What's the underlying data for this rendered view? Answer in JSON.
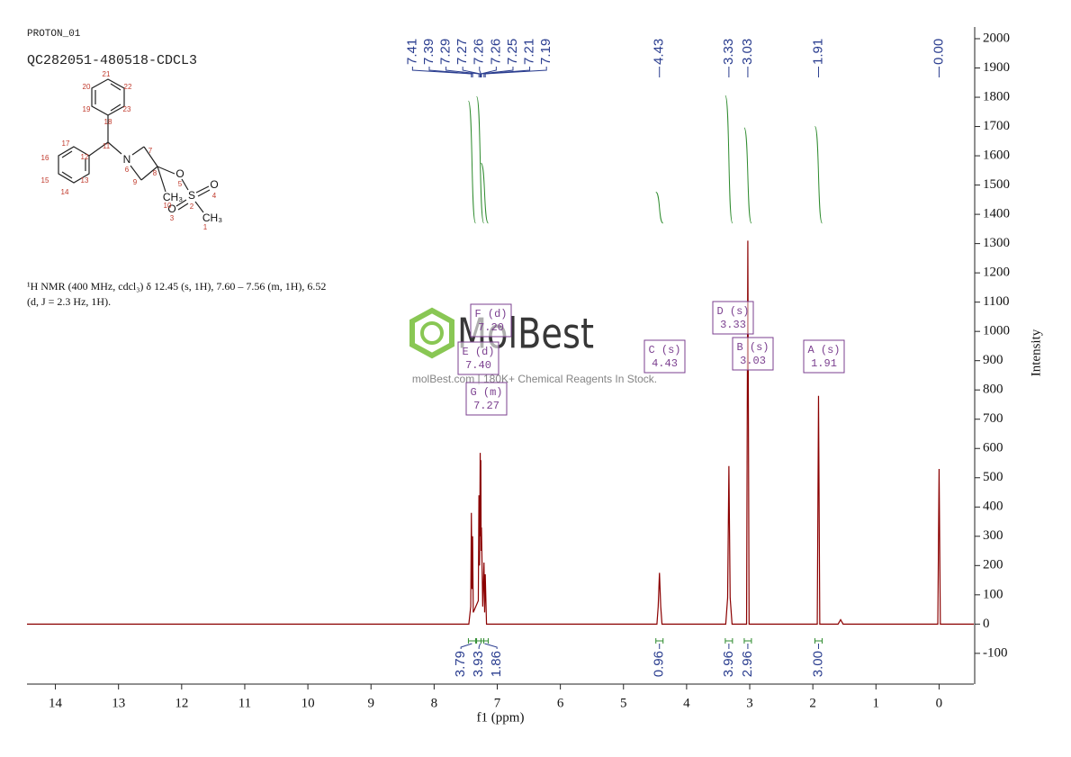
{
  "header": {
    "experiment": "PROTON_01",
    "sample": "QC282051-480518-CDCL3"
  },
  "description": [
    "¹H NMR (400 MHz, cdcl₃) δ 12.45 (s, 1H), 7.60 – 7.56 (m, 1H), 6.52",
    "(d, J = 2.3 Hz, 1H)."
  ],
  "watermark": {
    "brand": "MolBest",
    "tagline": "molBest.com | 180K+ Chemical Reagents In Stock."
  },
  "structure": {
    "atoms": [
      "N",
      "O",
      "S",
      "O",
      "O",
      "CH₃",
      "CH₃"
    ],
    "numbers": [
      "1",
      "2",
      "3",
      "4",
      "5",
      "6",
      "7",
      "8",
      "9",
      "10",
      "11",
      "12",
      "13",
      "14",
      "15",
      "16",
      "17",
      "18",
      "19",
      "20",
      "21",
      "22",
      "23"
    ]
  },
  "chart_data": {
    "type": "line",
    "x_label": "f1 (ppm)",
    "y_label": "Intensity",
    "color": "#8b0000",
    "xlim": [
      14.45,
      -0.55
    ],
    "ylim": [
      -205,
      2040
    ],
    "xticks": [
      14,
      13,
      12,
      11,
      10,
      9,
      8,
      7,
      6,
      5,
      4,
      3,
      2,
      1,
      0
    ],
    "yticks": [
      2000,
      1900,
      1800,
      1700,
      1600,
      1500,
      1400,
      1300,
      1200,
      1100,
      1000,
      900,
      800,
      700,
      600,
      500,
      400,
      300,
      200,
      100,
      0,
      -100
    ],
    "x": [
      14.45,
      7.45,
      7.42,
      7.41,
      7.4,
      7.39,
      7.38,
      7.3,
      7.29,
      7.28,
      7.27,
      7.265,
      7.26,
      7.255,
      7.25,
      7.23,
      7.21,
      7.2,
      7.19,
      7.17,
      4.47,
      4.45,
      4.43,
      4.41,
      4.39,
      3.38,
      3.35,
      3.33,
      3.31,
      3.28,
      3.05,
      3.03,
      3.01,
      1.93,
      1.91,
      1.89,
      1.6,
      1.56,
      1.52,
      0.02,
      0.0,
      -0.02,
      -0.55
    ],
    "values": [
      0,
      0,
      60,
      380,
      120,
      300,
      40,
      80,
      440,
      200,
      585,
      300,
      560,
      250,
      330,
      60,
      210,
      40,
      170,
      0,
      0,
      60,
      175,
      60,
      0,
      0,
      90,
      540,
      90,
      0,
      0,
      1310,
      0,
      0,
      780,
      0,
      0,
      15,
      0,
      0,
      530,
      0,
      0
    ],
    "peak_labels": [
      7.41,
      7.39,
      7.29,
      7.27,
      7.26,
      7.26,
      7.25,
      7.21,
      7.19,
      4.43,
      3.33,
      3.03,
      1.91,
      {
        "value": 0,
        "label": "0.00"
      }
    ],
    "integrals": [
      {
        "x": 7.4,
        "value": 3.79
      },
      {
        "x": 7.27,
        "value": 3.93
      },
      {
        "x": 7.2,
        "value": 1.86
      },
      {
        "x": 4.43,
        "value": 0.96
      },
      {
        "x": 3.33,
        "value": 3.96
      },
      {
        "x": 3.03,
        "value": 2.96
      },
      {
        "x": 1.91,
        "value": 3.0,
        "label": "3.00"
      }
    ],
    "multiplets": [
      {
        "name": "A (s)",
        "shift": "1.91"
      },
      {
        "name": "B (s)",
        "shift": "3.03"
      },
      {
        "name": "C (s)",
        "shift": "4.43"
      },
      {
        "name": "D (s)",
        "shift": "3.33"
      },
      {
        "name": "E (d)",
        "shift": "7.40"
      },
      {
        "name": "F (d)",
        "shift": "7.20"
      },
      {
        "name": "G (m)",
        "shift": "7.27"
      }
    ]
  }
}
